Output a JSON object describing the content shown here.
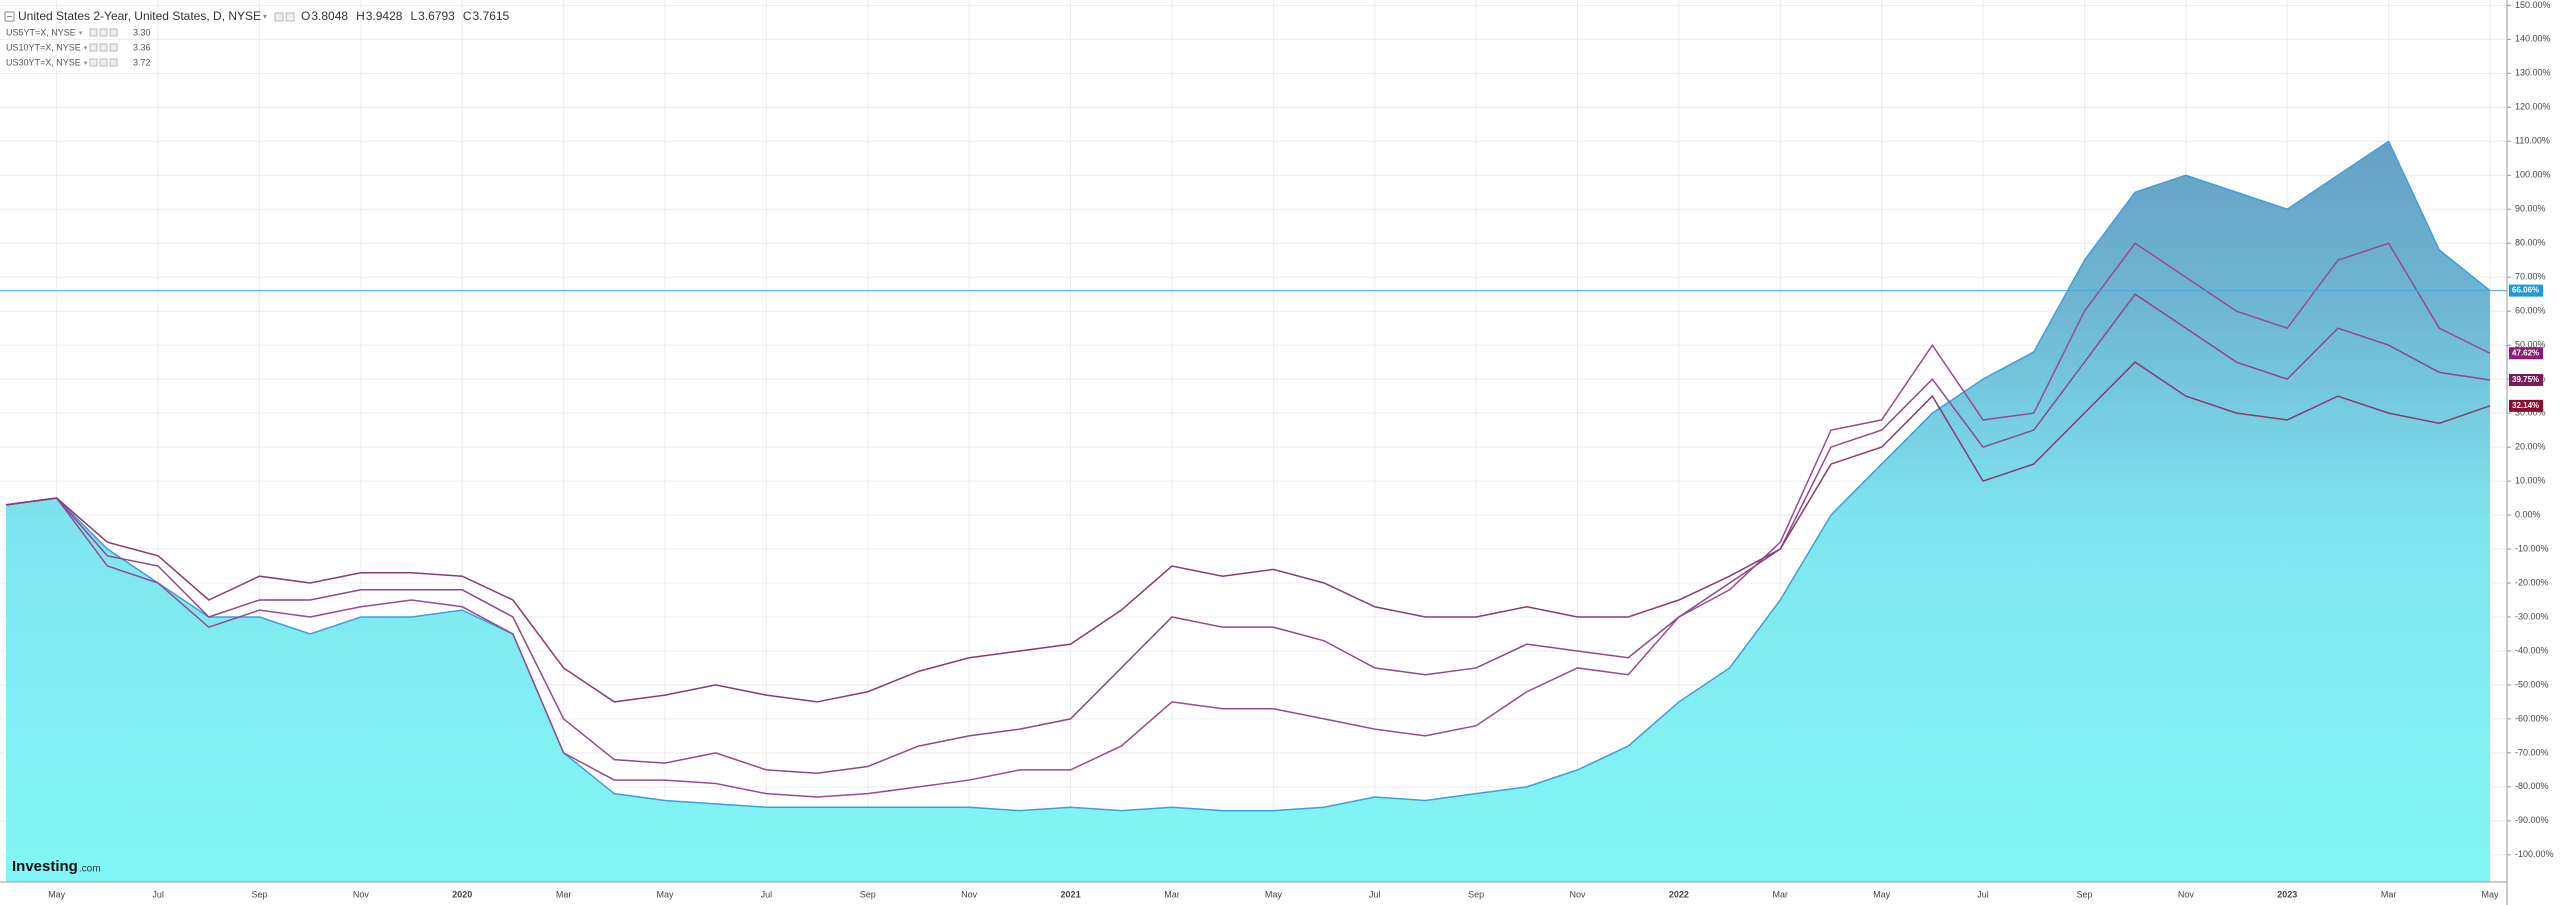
{
  "chart_data": {
    "type": "line",
    "categories": [
      null,
      "May",
      null,
      "Jul",
      null,
      "Sep",
      null,
      "Nov",
      null,
      "2020",
      null,
      "Mar",
      null,
      "May",
      null,
      "Jul",
      null,
      "Sep",
      null,
      "Nov",
      null,
      "2021",
      null,
      "Mar",
      null,
      "May",
      null,
      "Jul",
      null,
      "Sep",
      null,
      "Nov",
      null,
      "2022",
      null,
      "Mar",
      null,
      "May",
      null,
      "Jul",
      null,
      "Sep",
      null,
      "Nov",
      null,
      "2023",
      null,
      "Mar",
      null,
      "May"
    ],
    "ylim": [
      -108,
      151
    ],
    "yticks": [
      {
        "value": 150,
        "label": "150.00%"
      },
      {
        "value": 140,
        "label": "140.00%"
      },
      {
        "value": 130,
        "label": "130.00%"
      },
      {
        "value": 120,
        "label": "120.00%"
      },
      {
        "value": 110,
        "label": "110.00%"
      },
      {
        "value": 100,
        "label": "100.00%"
      },
      {
        "value": 90,
        "label": "90.00%"
      },
      {
        "value": 80,
        "label": "80.00%"
      },
      {
        "value": 70,
        "label": "70.00%"
      },
      {
        "value": 60,
        "label": "60.00%"
      },
      {
        "value": 50,
        "label": "50.00%"
      },
      {
        "value": 40,
        "label": "40.00%"
      },
      {
        "value": 30,
        "label": "30.00%"
      },
      {
        "value": 20,
        "label": "20.00%"
      },
      {
        "value": 10,
        "label": "10.00%"
      },
      {
        "value": 0,
        "label": "0.00%"
      },
      {
        "value": -10,
        "label": "-10.00%"
      },
      {
        "value": -20,
        "label": "-20.00%"
      },
      {
        "value": -30,
        "label": "-30.00%"
      },
      {
        "value": -40,
        "label": "-40.00%"
      },
      {
        "value": -50,
        "label": "-50.00%"
      },
      {
        "value": -60,
        "label": "-60.00%"
      },
      {
        "value": -70,
        "label": "-70.00%"
      },
      {
        "value": -80,
        "label": "-80.00%"
      },
      {
        "value": -90,
        "label": "-90.00%"
      },
      {
        "value": -100,
        "label": "-100.00%"
      }
    ],
    "grid": true,
    "series": [
      {
        "name": "United States 2-Year, United States, D, NYSE",
        "style": "area",
        "color": "#3f9fd8",
        "label_color": "#1f9ad6",
        "ohlc": [
          {
            "key": "O",
            "value": "3.8048"
          },
          {
            "key": "H",
            "value": "3.9428"
          },
          {
            "key": "L",
            "value": "3.6793"
          },
          {
            "key": "C",
            "value": "3.7615"
          }
        ],
        "last_value_label": "66.06%",
        "values": [
          3,
          5,
          -10,
          -20,
          -30,
          -30,
          -35,
          -30,
          -30,
          -28,
          -35,
          -70,
          -82,
          -84,
          -85,
          -86,
          -86,
          -86,
          -86,
          -86,
          -87,
          -86,
          -87,
          -86,
          -87,
          -87,
          -86,
          -83,
          -84,
          -82,
          -80,
          -75,
          -68,
          -55,
          -45,
          -25,
          0,
          15,
          30,
          40,
          48,
          75,
          95,
          100,
          95,
          90,
          100,
          110,
          78,
          66.06
        ]
      },
      {
        "name": "US5YT=X, NYSE",
        "style": "line",
        "color": "#9a4a92",
        "label_color": "#8b1a7a",
        "last": "3.30",
        "last_value_label": "47.62%",
        "values": [
          3,
          5,
          -15,
          -20,
          -33,
          -28,
          -30,
          -27,
          -25,
          -27,
          -35,
          -70,
          -78,
          -78,
          -79,
          -82,
          -83,
          -82,
          -80,
          -78,
          -75,
          -75,
          -68,
          -55,
          -57,
          -57,
          -60,
          -63,
          -65,
          -62,
          -52,
          -45,
          -47,
          -30,
          -22,
          -8,
          25,
          28,
          50,
          28,
          30,
          60,
          80,
          70,
          60,
          55,
          75,
          80,
          55,
          47.62
        ]
      },
      {
        "name": "US10YT=X, NYSE",
        "style": "line",
        "color": "#8e4a86",
        "label_color": "#7a1a5a",
        "last": "3.36",
        "last_value_label": "39.75%",
        "values": [
          3,
          5,
          -12,
          -15,
          -30,
          -25,
          -25,
          -22,
          -22,
          -22,
          -30,
          -60,
          -72,
          -73,
          -70,
          -75,
          -76,
          -74,
          -68,
          -65,
          -63,
          -60,
          -45,
          -30,
          -33,
          -33,
          -37,
          -45,
          -47,
          -45,
          -38,
          -40,
          -42,
          -30,
          -20,
          -10,
          20,
          25,
          40,
          20,
          25,
          45,
          65,
          55,
          45,
          40,
          55,
          50,
          42,
          39.75
        ]
      },
      {
        "name": "US30YT=X, NYSE",
        "style": "line",
        "color": "#8a3a70",
        "label_color": "#8a0a30",
        "last": "3.72",
        "last_value_label": "32.14%",
        "values": [
          3,
          5,
          -8,
          -12,
          -25,
          -18,
          -20,
          -17,
          -17,
          -18,
          -25,
          -45,
          -55,
          -53,
          -50,
          -53,
          -55,
          -52,
          -46,
          -42,
          -40,
          -38,
          -28,
          -15,
          -18,
          -16,
          -20,
          -27,
          -30,
          -30,
          -27,
          -30,
          -30,
          -25,
          -18,
          -10,
          15,
          20,
          35,
          10,
          15,
          30,
          45,
          35,
          30,
          28,
          35,
          30,
          27,
          32.14
        ]
      }
    ],
    "logo": {
      "name": "Investing",
      "suffix": ".com"
    }
  }
}
